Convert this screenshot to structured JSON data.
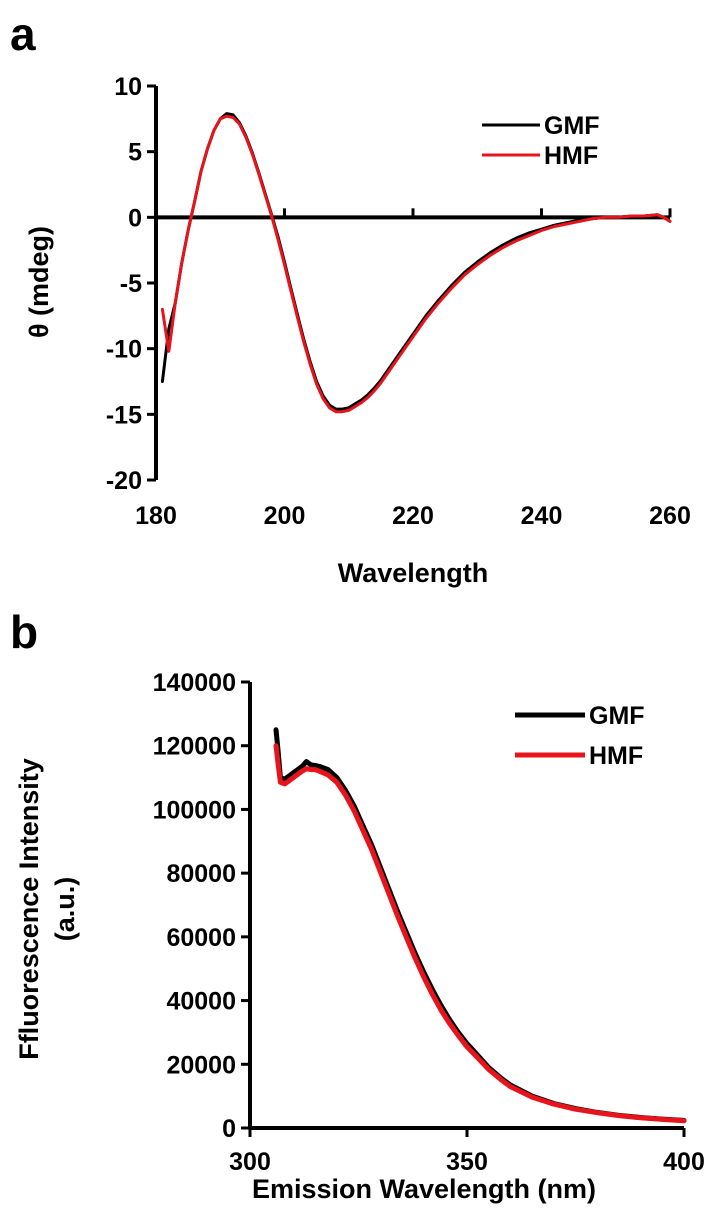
{
  "chart_data": [
    {
      "panel_label": "a",
      "type": "line",
      "title": "",
      "xlabel": "Wavelength",
      "ylabel": "θ (mdeg)",
      "xlim": [
        180,
        260
      ],
      "ylim": [
        -20,
        10
      ],
      "xticks": [
        "180",
        "200",
        "220",
        "240",
        "260"
      ],
      "yticks": [
        "10",
        "5",
        "0",
        "-5",
        "-10",
        "-15",
        "-20"
      ],
      "zero_line": true,
      "grid": false,
      "legend_position": "top-right",
      "series": [
        {
          "name": "GMF",
          "color": "#000000",
          "x": [
            181,
            182,
            183,
            184,
            185,
            186,
            187,
            188,
            189,
            190,
            191,
            192,
            193,
            194,
            195,
            196,
            197,
            198,
            199,
            200,
            201,
            202,
            203,
            204,
            205,
            206,
            207,
            208,
            209,
            210,
            211,
            212,
            213,
            214,
            215,
            216,
            218,
            220,
            222,
            224,
            226,
            228,
            230,
            232,
            234,
            236,
            238,
            240,
            242,
            244,
            246,
            248,
            250,
            252,
            254,
            256,
            258,
            259,
            260
          ],
          "y": [
            -12.5,
            -8.5,
            -6.5,
            -3.5,
            -1.0,
            1.2,
            3.5,
            5.2,
            6.6,
            7.5,
            7.9,
            7.8,
            7.2,
            6.2,
            4.9,
            3.4,
            1.8,
            0.2,
            -1.5,
            -3.4,
            -5.4,
            -7.4,
            -9.3,
            -11.0,
            -12.5,
            -13.6,
            -14.3,
            -14.6,
            -14.6,
            -14.5,
            -14.2,
            -13.9,
            -13.5,
            -13.0,
            -12.4,
            -11.7,
            -10.3,
            -8.9,
            -7.5,
            -6.3,
            -5.2,
            -4.2,
            -3.4,
            -2.7,
            -2.1,
            -1.6,
            -1.2,
            -0.9,
            -0.6,
            -0.4,
            -0.2,
            -0.1,
            0.0,
            0.0,
            0.1,
            0.1,
            0.2,
            0.0,
            -0.3
          ]
        },
        {
          "name": "HMF",
          "color": "#e8141c",
          "x": [
            181,
            182,
            183,
            184,
            185,
            186,
            187,
            188,
            189,
            190,
            191,
            192,
            193,
            194,
            195,
            196,
            197,
            198,
            199,
            200,
            201,
            202,
            203,
            204,
            205,
            206,
            207,
            208,
            209,
            210,
            211,
            212,
            213,
            214,
            215,
            216,
            218,
            220,
            222,
            224,
            226,
            228,
            230,
            232,
            234,
            236,
            238,
            240,
            242,
            244,
            246,
            248,
            250,
            252,
            254,
            256,
            258,
            259,
            260
          ],
          "y": [
            -7.0,
            -10.2,
            -6.5,
            -3.5,
            -1.0,
            1.2,
            3.5,
            5.2,
            6.6,
            7.5,
            7.7,
            7.6,
            7.1,
            6.1,
            4.8,
            3.3,
            1.7,
            0.1,
            -1.7,
            -3.6,
            -5.6,
            -7.6,
            -9.5,
            -11.2,
            -12.7,
            -13.8,
            -14.5,
            -14.8,
            -14.8,
            -14.7,
            -14.4,
            -14.1,
            -13.7,
            -13.2,
            -12.6,
            -11.9,
            -10.5,
            -9.1,
            -7.7,
            -6.5,
            -5.4,
            -4.4,
            -3.6,
            -2.9,
            -2.3,
            -1.8,
            -1.4,
            -1.0,
            -0.7,
            -0.5,
            -0.3,
            -0.1,
            0.0,
            0.0,
            0.1,
            0.1,
            0.2,
            0.0,
            -0.3
          ]
        }
      ]
    },
    {
      "panel_label": "b",
      "type": "line",
      "title": "",
      "xlabel": "Emission Wavelength (nm)",
      "ylabel": "Ffluorescence Intensity",
      "ylabel_line2": "(a.u.)",
      "xlim": [
        300,
        400
      ],
      "ylim": [
        0,
        140000
      ],
      "xticks": [
        "300",
        "350",
        "400"
      ],
      "yticks": [
        "140000",
        "120000",
        "100000",
        "80000",
        "60000",
        "40000",
        "20000",
        "0"
      ],
      "grid": false,
      "legend_position": "top-right",
      "series": [
        {
          "name": "GMF",
          "color": "#000000",
          "x": [
            306,
            306.5,
            307,
            308,
            309,
            310,
            311,
            312,
            313,
            314,
            315,
            316,
            318,
            320,
            322,
            324,
            326,
            328,
            330,
            332,
            334,
            336,
            338,
            340,
            342,
            344,
            346,
            348,
            350,
            352,
            355,
            358,
            360,
            365,
            370,
            375,
            380,
            385,
            390,
            395,
            400
          ],
          "y": [
            125000,
            118000,
            110000,
            109500,
            110500,
            111500,
            112500,
            113500,
            115000,
            114000,
            113800,
            113500,
            112500,
            110000,
            106000,
            101000,
            95000,
            89000,
            82000,
            75000,
            68000,
            61500,
            55000,
            49000,
            43500,
            38500,
            34000,
            30000,
            26500,
            23500,
            19000,
            15500,
            13500,
            10000,
            7700,
            6100,
            4900,
            4000,
            3300,
            2800,
            2400
          ]
        },
        {
          "name": "HMF",
          "color": "#e8141c",
          "x": [
            306,
            306.5,
            307,
            308,
            309,
            310,
            311,
            312,
            313,
            314,
            315,
            316,
            318,
            320,
            322,
            324,
            326,
            328,
            330,
            332,
            334,
            336,
            338,
            340,
            342,
            344,
            346,
            348,
            350,
            352,
            355,
            358,
            360,
            365,
            370,
            375,
            380,
            385,
            390,
            395,
            400
          ],
          "y": [
            120000,
            114000,
            108500,
            108000,
            109000,
            110000,
            111000,
            112000,
            112800,
            112500,
            112500,
            112000,
            110800,
            108500,
            104500,
            99500,
            93500,
            87500,
            80500,
            73500,
            66500,
            60000,
            53500,
            47500,
            42000,
            37000,
            32800,
            29000,
            25500,
            22700,
            18400,
            15000,
            13000,
            9700,
            7500,
            5900,
            4800,
            3900,
            3200,
            2700,
            2300
          ]
        }
      ]
    }
  ]
}
